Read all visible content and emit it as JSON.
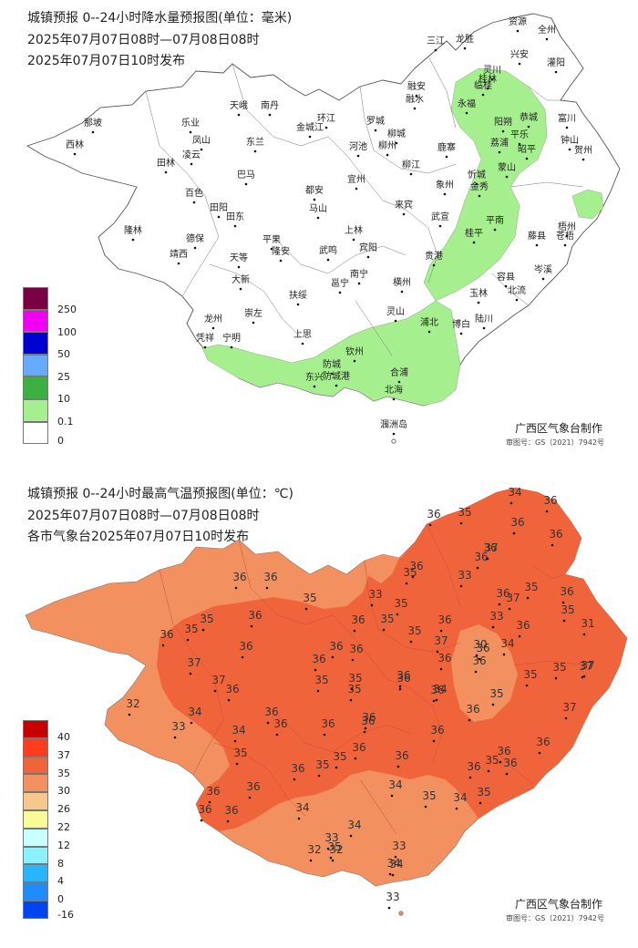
{
  "rain": {
    "title_line1": "城镇预报 0--24小时降水量预报图(单位：毫米)",
    "title_line2": "2025年07月07日08时—07月08日08时",
    "title_line3": "2025年07月07日10时发布",
    "credit": "广西区气象台制作",
    "review_no": "审图号：GS（2021）7942号",
    "legend": [
      {
        "label": "250",
        "color": "#7a0046"
      },
      {
        "label": "100",
        "color": "#f000f0"
      },
      {
        "label": "50",
        "color": "#0000d0"
      },
      {
        "label": "25",
        "color": "#66aaff"
      },
      {
        "label": "10",
        "color": "#3cb043"
      },
      {
        "label": "0.1",
        "color": "#a6ef8f"
      },
      {
        "label": "0",
        "color": "#ffffff"
      }
    ],
    "cities": [
      {
        "name": "资源"
      },
      {
        "name": "全州"
      },
      {
        "name": "三江"
      },
      {
        "name": "龙胜"
      },
      {
        "name": "兴安"
      },
      {
        "name": "灌阳"
      },
      {
        "name": "灵川"
      },
      {
        "name": "临桂"
      },
      {
        "name": "桂林"
      },
      {
        "name": "融安"
      },
      {
        "name": "融水"
      },
      {
        "name": "永福"
      },
      {
        "name": "阳朔"
      },
      {
        "name": "恭城"
      },
      {
        "name": "富川"
      },
      {
        "name": "平乐"
      },
      {
        "name": "钟山"
      },
      {
        "name": "荔浦"
      },
      {
        "name": "贺州"
      },
      {
        "name": "昭平"
      },
      {
        "name": "蒙山"
      },
      {
        "name": "鹿寨"
      },
      {
        "name": "柳城"
      },
      {
        "name": "柳州"
      },
      {
        "name": "柳江"
      },
      {
        "name": "罗城"
      },
      {
        "name": "环江"
      },
      {
        "name": "天峨"
      },
      {
        "name": "南丹"
      },
      {
        "name": "金城江"
      },
      {
        "name": "河池"
      },
      {
        "name": "宜州"
      },
      {
        "name": "忻城"
      },
      {
        "name": "象州"
      },
      {
        "name": "金秀"
      },
      {
        "name": "来宾"
      },
      {
        "name": "武宣"
      },
      {
        "name": "桂平"
      },
      {
        "name": "平南"
      },
      {
        "name": "藤县"
      },
      {
        "name": "苍梧"
      },
      {
        "name": "梧州"
      },
      {
        "name": "岑溪"
      },
      {
        "name": "容县"
      },
      {
        "name": "北流"
      },
      {
        "name": "玉林"
      },
      {
        "name": "贵港"
      },
      {
        "name": "博白"
      },
      {
        "name": "陆川"
      },
      {
        "name": "隆林"
      },
      {
        "name": "西林"
      },
      {
        "name": "乐业"
      },
      {
        "name": "凤山"
      },
      {
        "name": "东兰"
      },
      {
        "name": "田林"
      },
      {
        "name": "凌云"
      },
      {
        "name": "巴马"
      },
      {
        "name": "百色"
      },
      {
        "name": "田阳"
      },
      {
        "name": "田东"
      },
      {
        "name": "都安"
      },
      {
        "name": "马山"
      },
      {
        "name": "上林"
      },
      {
        "name": "宾阳"
      },
      {
        "name": "那坡"
      },
      {
        "name": "德保"
      },
      {
        "name": "靖西"
      },
      {
        "name": "平果"
      },
      {
        "name": "隆安"
      },
      {
        "name": "天等"
      },
      {
        "name": "大新"
      },
      {
        "name": "武鸣"
      },
      {
        "name": "南宁"
      },
      {
        "name": "邕宁"
      },
      {
        "name": "横州"
      },
      {
        "name": "扶绥"
      },
      {
        "name": "龙州"
      },
      {
        "name": "崇左"
      },
      {
        "name": "凭祥"
      },
      {
        "name": "宁明"
      },
      {
        "name": "上思"
      },
      {
        "name": "灵山"
      },
      {
        "name": "浦北"
      },
      {
        "name": "钦州"
      },
      {
        "name": "防城"
      },
      {
        "name": "东兴"
      },
      {
        "name": "防城港"
      },
      {
        "name": "合浦"
      },
      {
        "name": "北海"
      },
      {
        "name": "涠洲岛"
      }
    ]
  },
  "temp": {
    "title_line1": "城镇预报 0--24小时最高气温预报图(单位：℃)",
    "title_line2": "2025年07月07日08时—07月08日08时",
    "title_line3": "各市气象台2025年07月07日10时发布",
    "credit": "广西区气象台制作",
    "review_no": "审图号：GS（2021）7942号",
    "legend": [
      {
        "label": "40",
        "color": "#c80000"
      },
      {
        "label": "37",
        "color": "#ff3c1e"
      },
      {
        "label": "35",
        "color": "#f0643c"
      },
      {
        "label": "30",
        "color": "#f39060"
      },
      {
        "label": "26",
        "color": "#f7c88c"
      },
      {
        "label": "22",
        "color": "#fafa96"
      },
      {
        "label": "12",
        "color": "#c8ffff"
      },
      {
        "label": "8",
        "color": "#8cf0ff"
      },
      {
        "label": "4",
        "color": "#28b4ff"
      },
      {
        "label": "0",
        "color": "#1e8cff"
      },
      {
        "label": "-16",
        "color": "#0046f0"
      }
    ],
    "values": [
      {
        "v": "34"
      },
      {
        "v": "36"
      },
      {
        "v": "36"
      },
      {
        "v": "35"
      },
      {
        "v": "36"
      },
      {
        "v": "36"
      },
      {
        "v": "36"
      },
      {
        "v": "36"
      },
      {
        "v": "37"
      },
      {
        "v": "36"
      },
      {
        "v": "35"
      },
      {
        "v": "33"
      },
      {
        "v": "36"
      },
      {
        "v": "35"
      },
      {
        "v": "36"
      },
      {
        "v": "37"
      },
      {
        "v": "35"
      },
      {
        "v": "33"
      },
      {
        "v": "31"
      },
      {
        "v": "36"
      },
      {
        "v": "34"
      },
      {
        "v": "36"
      },
      {
        "v": "35"
      },
      {
        "v": "35"
      },
      {
        "v": "35"
      },
      {
        "v": "33"
      },
      {
        "v": "35"
      },
      {
        "v": "36"
      },
      {
        "v": "36"
      },
      {
        "v": "36"
      },
      {
        "v": "36"
      },
      {
        "v": "36"
      },
      {
        "v": "36"
      },
      {
        "v": "36"
      },
      {
        "v": "36"
      },
      {
        "v": "36"
      },
      {
        "v": "34"
      },
      {
        "v": "36"
      },
      {
        "v": "35"
      },
      {
        "v": "30"
      },
      {
        "v": "35"
      },
      {
        "v": "35"
      },
      {
        "v": "37"
      },
      {
        "v": "37"
      },
      {
        "v": "36"
      },
      {
        "v": "36"
      },
      {
        "v": "36"
      },
      {
        "v": "35"
      },
      {
        "v": "36"
      },
      {
        "v": "36"
      },
      {
        "v": "36"
      },
      {
        "v": "35"
      },
      {
        "v": "36"
      },
      {
        "v": "37"
      },
      {
        "v": "37"
      },
      {
        "v": "37"
      },
      {
        "v": "36"
      },
      {
        "v": "36"
      },
      {
        "v": "36"
      },
      {
        "v": "35"
      },
      {
        "v": "35"
      },
      {
        "v": "32"
      },
      {
        "v": "34"
      },
      {
        "v": "33"
      },
      {
        "v": "34"
      },
      {
        "v": "36"
      },
      {
        "v": "36"
      },
      {
        "v": "36"
      },
      {
        "v": "36"
      },
      {
        "v": "35"
      },
      {
        "v": "36"
      },
      {
        "v": "36"
      },
      {
        "v": "36"
      },
      {
        "v": "35"
      },
      {
        "v": "36"
      },
      {
        "v": "36"
      },
      {
        "v": "36"
      },
      {
        "v": "36"
      },
      {
        "v": "35"
      },
      {
        "v": "35"
      },
      {
        "v": "35"
      },
      {
        "v": "36"
      },
      {
        "v": "37"
      },
      {
        "v": "36"
      },
      {
        "v": "36"
      },
      {
        "v": "34"
      },
      {
        "v": "35"
      },
      {
        "v": "34"
      },
      {
        "v": "34"
      },
      {
        "v": "35"
      },
      {
        "v": "34"
      },
      {
        "v": "33"
      },
      {
        "v": "32"
      },
      {
        "v": "32"
      },
      {
        "v": "33"
      },
      {
        "v": "34"
      },
      {
        "v": "35"
      },
      {
        "v": "34"
      },
      {
        "v": "33"
      }
    ]
  }
}
